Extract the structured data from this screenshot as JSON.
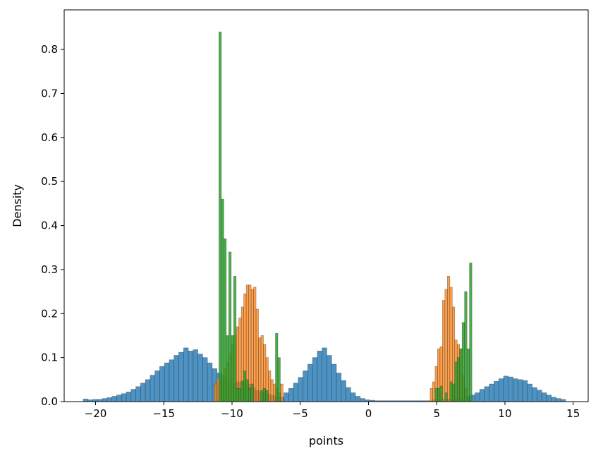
{
  "chart_data": {
    "type": "histogram",
    "xlabel": "points",
    "ylabel": "Density",
    "xlim": [
      -22.3,
      16.1
    ],
    "ylim": [
      0,
      0.89
    ],
    "xticks": [
      -20,
      -15,
      -10,
      -5,
      0,
      5,
      10,
      15
    ],
    "xtick_labels": [
      "−20",
      "−15",
      "−10",
      "−5",
      "0",
      "5",
      "10",
      "15"
    ],
    "yticks": [
      0.0,
      0.1,
      0.2,
      0.3,
      0.4,
      0.5,
      0.6,
      0.7,
      0.8
    ],
    "ytick_labels": [
      "0.0",
      "0.1",
      "0.2",
      "0.3",
      "0.4",
      "0.5",
      "0.6",
      "0.7",
      "0.8"
    ],
    "grid": false,
    "series": [
      {
        "color": "#1f77b4",
        "alpha": 0.8,
        "bin_width": 0.35,
        "bins": [
          [
            -20.9,
            0.006
          ],
          [
            -20.55,
            0.004
          ],
          [
            -20.2,
            0.005
          ],
          [
            -19.85,
            0.005
          ],
          [
            -19.5,
            0.007
          ],
          [
            -19.15,
            0.009
          ],
          [
            -18.8,
            0.012
          ],
          [
            -18.45,
            0.015
          ],
          [
            -18.1,
            0.018
          ],
          [
            -17.75,
            0.022
          ],
          [
            -17.4,
            0.028
          ],
          [
            -17.05,
            0.034
          ],
          [
            -16.7,
            0.042
          ],
          [
            -16.35,
            0.05
          ],
          [
            -16.0,
            0.06
          ],
          [
            -15.65,
            0.07
          ],
          [
            -15.3,
            0.08
          ],
          [
            -14.95,
            0.088
          ],
          [
            -14.6,
            0.095
          ],
          [
            -14.25,
            0.105
          ],
          [
            -13.9,
            0.112
          ],
          [
            -13.55,
            0.122
          ],
          [
            -13.2,
            0.115
          ],
          [
            -12.85,
            0.118
          ],
          [
            -12.5,
            0.108
          ],
          [
            -12.15,
            0.1
          ],
          [
            -11.8,
            0.088
          ],
          [
            -11.45,
            0.075
          ],
          [
            -11.1,
            0.065
          ],
          [
            -10.75,
            0.055
          ],
          [
            -10.4,
            0.045
          ],
          [
            -10.05,
            0.04
          ],
          [
            -9.7,
            0.045
          ],
          [
            -9.35,
            0.048
          ],
          [
            -9.0,
            0.04
          ],
          [
            -8.65,
            0.032
          ],
          [
            -8.3,
            0.025
          ],
          [
            -7.95,
            0.02
          ],
          [
            -7.6,
            0.018
          ],
          [
            -7.25,
            0.015
          ],
          [
            -6.9,
            0.012
          ],
          [
            -6.55,
            0.01
          ],
          [
            -6.2,
            0.02
          ],
          [
            -5.85,
            0.03
          ],
          [
            -5.5,
            0.042
          ],
          [
            -5.15,
            0.055
          ],
          [
            -4.8,
            0.07
          ],
          [
            -4.45,
            0.085
          ],
          [
            -4.1,
            0.1
          ],
          [
            -3.75,
            0.115
          ],
          [
            -3.4,
            0.122
          ],
          [
            -3.05,
            0.105
          ],
          [
            -2.7,
            0.085
          ],
          [
            -2.35,
            0.065
          ],
          [
            -2.0,
            0.048
          ],
          [
            -1.65,
            0.032
          ],
          [
            -1.3,
            0.02
          ],
          [
            -0.95,
            0.012
          ],
          [
            -0.6,
            0.007
          ],
          [
            -0.25,
            0.004
          ],
          [
            0.1,
            0.003
          ],
          [
            0.45,
            0.002
          ],
          [
            0.8,
            0.002
          ],
          [
            1.15,
            0.002
          ],
          [
            1.5,
            0.002
          ],
          [
            1.85,
            0.002
          ],
          [
            2.2,
            0.002
          ],
          [
            2.55,
            0.002
          ],
          [
            2.9,
            0.002
          ],
          [
            3.25,
            0.002
          ],
          [
            3.6,
            0.002
          ],
          [
            3.95,
            0.002
          ],
          [
            4.3,
            0.002
          ],
          [
            4.65,
            0.004
          ],
          [
            5.0,
            0.005
          ],
          [
            5.35,
            0.006
          ],
          [
            5.7,
            0.006
          ],
          [
            6.05,
            0.007
          ],
          [
            6.4,
            0.008
          ],
          [
            6.75,
            0.009
          ],
          [
            7.1,
            0.012
          ],
          [
            7.45,
            0.015
          ],
          [
            7.8,
            0.02
          ],
          [
            8.15,
            0.028
          ],
          [
            8.5,
            0.034
          ],
          [
            8.85,
            0.04
          ],
          [
            9.2,
            0.046
          ],
          [
            9.55,
            0.052
          ],
          [
            9.9,
            0.058
          ],
          [
            10.25,
            0.056
          ],
          [
            10.6,
            0.052
          ],
          [
            10.95,
            0.05
          ],
          [
            11.3,
            0.048
          ],
          [
            11.65,
            0.04
          ],
          [
            12.0,
            0.032
          ],
          [
            12.35,
            0.026
          ],
          [
            12.7,
            0.02
          ],
          [
            13.05,
            0.015
          ],
          [
            13.4,
            0.01
          ],
          [
            13.75,
            0.007
          ],
          [
            14.1,
            0.005
          ]
        ]
      },
      {
        "color": "#ff7f0e",
        "alpha": 0.75,
        "bin_width": 0.18,
        "bins": [
          [
            -11.3,
            0.04
          ],
          [
            -11.12,
            0.055
          ],
          [
            -10.94,
            0.045
          ],
          [
            -10.76,
            0.06
          ],
          [
            -10.58,
            0.075
          ],
          [
            -10.4,
            0.09
          ],
          [
            -10.22,
            0.11
          ],
          [
            -10.04,
            0.13
          ],
          [
            -9.86,
            0.15
          ],
          [
            -9.68,
            0.17
          ],
          [
            -9.5,
            0.19
          ],
          [
            -9.32,
            0.215
          ],
          [
            -9.14,
            0.245
          ],
          [
            -8.96,
            0.265
          ],
          [
            -8.78,
            0.265
          ],
          [
            -8.6,
            0.255
          ],
          [
            -8.42,
            0.26
          ],
          [
            -8.24,
            0.21
          ],
          [
            -8.06,
            0.145
          ],
          [
            -7.88,
            0.15
          ],
          [
            -7.7,
            0.13
          ],
          [
            -7.52,
            0.1
          ],
          [
            -7.34,
            0.07
          ],
          [
            -7.16,
            0.05
          ],
          [
            -6.98,
            0.04
          ],
          [
            -6.8,
            0.03
          ],
          [
            -6.62,
            0.02
          ],
          [
            -6.44,
            0.04
          ],
          [
            4.52,
            0.03
          ],
          [
            4.7,
            0.045
          ],
          [
            4.88,
            0.08
          ],
          [
            5.06,
            0.12
          ],
          [
            5.24,
            0.125
          ],
          [
            5.42,
            0.23
          ],
          [
            5.6,
            0.255
          ],
          [
            5.78,
            0.285
          ],
          [
            5.96,
            0.26
          ],
          [
            6.14,
            0.215
          ],
          [
            6.32,
            0.14
          ],
          [
            6.5,
            0.13
          ],
          [
            6.68,
            0.12
          ],
          [
            6.86,
            0.06
          ],
          [
            7.04,
            0.03
          ]
        ]
      },
      {
        "color": "#2ca02c",
        "alpha": 0.85,
        "bin_width": 0.18,
        "bins": [
          [
            -10.96,
            0.84
          ],
          [
            -10.78,
            0.46
          ],
          [
            -10.6,
            0.37
          ],
          [
            -10.42,
            0.15
          ],
          [
            -10.24,
            0.34
          ],
          [
            -10.06,
            0.15
          ],
          [
            -9.88,
            0.285
          ],
          [
            -9.7,
            0.03
          ],
          [
            -9.52,
            0.03
          ],
          [
            -9.34,
            0.045
          ],
          [
            -9.16,
            0.07
          ],
          [
            -8.98,
            0.05
          ],
          [
            -8.8,
            0.03
          ],
          [
            -8.62,
            0.04
          ],
          [
            -7.9,
            0.025
          ],
          [
            -7.72,
            0.03
          ],
          [
            -7.54,
            0.025
          ],
          [
            -6.82,
            0.155
          ],
          [
            -6.64,
            0.1
          ],
          [
            4.88,
            0.03
          ],
          [
            5.06,
            0.03
          ],
          [
            5.24,
            0.035
          ],
          [
            5.6,
            0.02
          ],
          [
            5.96,
            0.045
          ],
          [
            6.14,
            0.04
          ],
          [
            6.32,
            0.09
          ],
          [
            6.5,
            0.1
          ],
          [
            6.68,
            0.12
          ],
          [
            6.86,
            0.18
          ],
          [
            7.04,
            0.25
          ],
          [
            7.22,
            0.12
          ],
          [
            7.4,
            0.315
          ]
        ]
      }
    ]
  }
}
